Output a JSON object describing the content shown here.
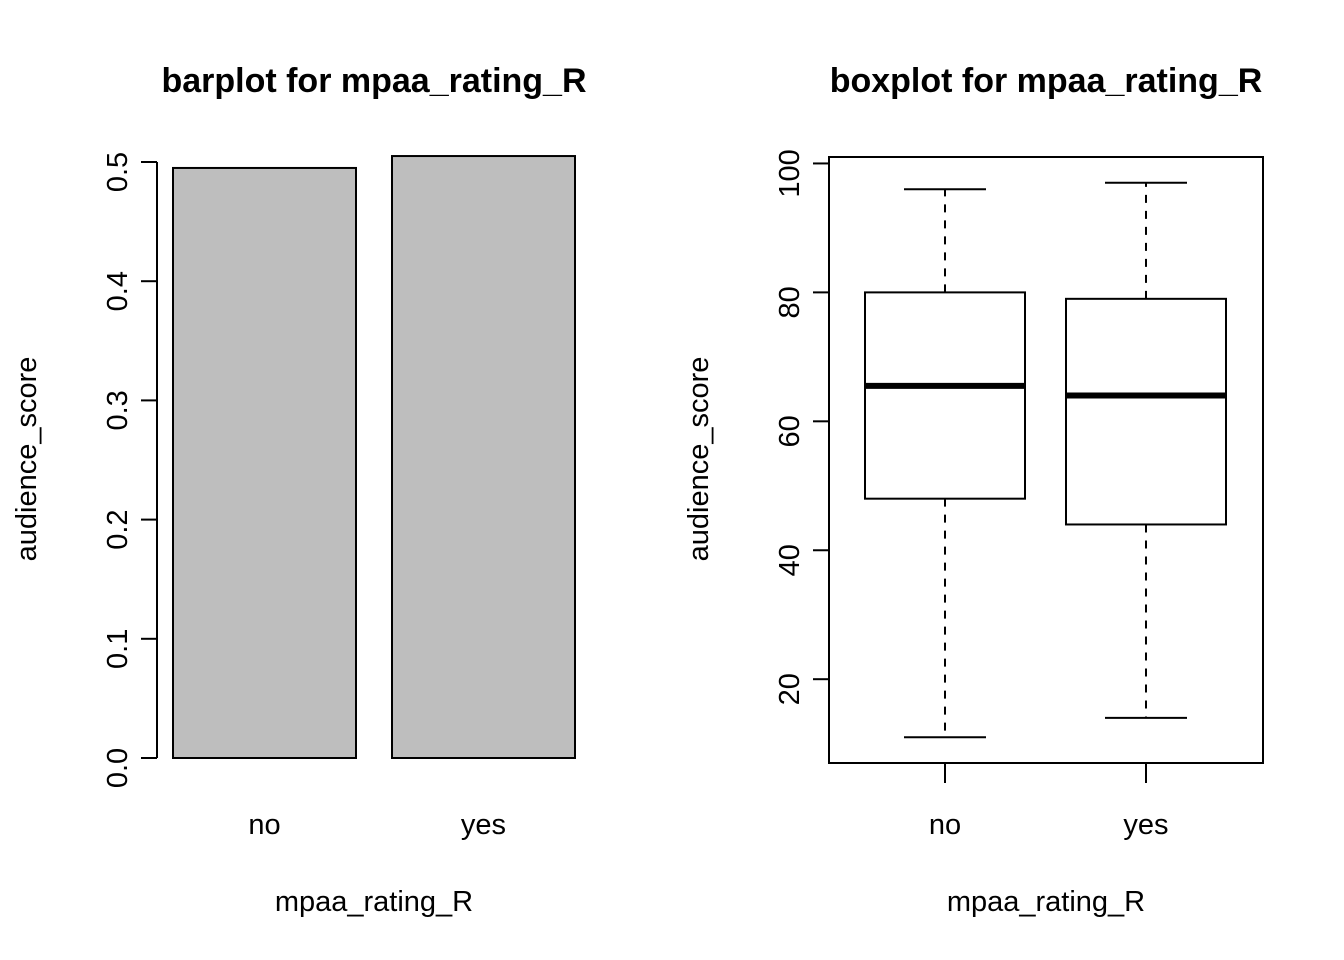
{
  "chart_data": [
    {
      "type": "bar",
      "title": "barplot for mpaa_rating_R",
      "xlabel": "mpaa_rating_R",
      "ylabel": "audience_score",
      "categories": [
        "no",
        "yes"
      ],
      "values": [
        0.495,
        0.505
      ],
      "ylim": [
        0,
        0.5
      ],
      "yticks": [
        0.0,
        0.1,
        0.2,
        0.3,
        0.4,
        0.5
      ],
      "ytick_labels": [
        "0.0",
        "0.1",
        "0.2",
        "0.3",
        "0.4",
        "0.5"
      ],
      "bar_color": "#bebebe",
      "grid": false
    },
    {
      "type": "box",
      "title": "boxplot for mpaa_rating_R",
      "xlabel": "mpaa_rating_R",
      "ylabel": "audience_score",
      "categories": [
        "no",
        "yes"
      ],
      "boxes": [
        {
          "category": "no",
          "min": 11,
          "q1": 48,
          "median": 65.5,
          "q3": 80,
          "max": 96
        },
        {
          "category": "yes",
          "min": 14,
          "q1": 44,
          "median": 64,
          "q3": 79,
          "max": 97
        }
      ],
      "ylim": [
        7,
        101
      ],
      "yticks": [
        20,
        40,
        60,
        80,
        100
      ],
      "ytick_labels": [
        "20",
        "40",
        "60",
        "80",
        "100"
      ],
      "grid": false
    }
  ]
}
